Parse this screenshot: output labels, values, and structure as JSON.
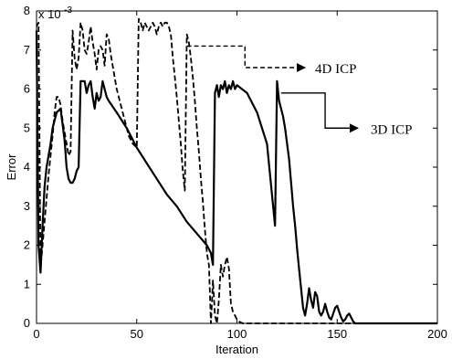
{
  "chart_data": {
    "type": "line",
    "title": "",
    "xlabel": "Iteration",
    "ylabel": "Error",
    "xlim": [
      0,
      200
    ],
    "ylim": [
      0,
      8
    ],
    "y_scale_exponent_label": "x 10",
    "y_scale_exponent_power": "-3",
    "xticks": [
      "0",
      "50",
      "100",
      "150",
      "200"
    ],
    "yticks": [
      "0",
      "1",
      "2",
      "3",
      "4",
      "5",
      "6",
      "7",
      "8"
    ],
    "grid": false,
    "series": [
      {
        "name": "3D ICP",
        "style": "solid",
        "x": [
          0,
          1,
          2,
          3,
          4,
          5,
          6,
          7,
          8,
          10,
          12,
          14,
          15,
          16,
          17,
          18,
          19,
          20,
          21,
          22,
          23,
          24,
          25,
          26,
          27,
          28,
          29,
          30,
          31,
          32,
          33,
          34,
          35,
          36,
          40,
          45,
          50,
          55,
          60,
          65,
          70,
          75,
          80,
          85,
          86,
          87,
          88,
          89,
          90,
          91,
          92,
          93,
          94,
          95,
          96,
          97,
          98,
          99,
          100,
          105,
          110,
          115,
          119,
          120,
          121,
          122,
          123,
          124,
          125,
          126,
          127,
          128,
          129,
          130,
          131,
          132,
          133,
          134,
          135,
          136,
          137,
          138,
          139,
          140,
          141,
          142,
          143,
          144,
          145,
          146,
          147,
          148,
          149,
          150,
          151,
          152,
          153,
          154,
          155,
          156,
          157,
          158,
          159,
          160,
          161,
          162,
          163,
          165,
          200
        ],
        "y": [
          7.5,
          2.0,
          1.3,
          2.5,
          3.5,
          4.0,
          4.3,
          4.6,
          5.0,
          5.4,
          5.5,
          4.7,
          4.0,
          3.7,
          3.6,
          3.6,
          3.7,
          3.9,
          4.0,
          6.2,
          6.2,
          6.2,
          5.9,
          6.1,
          6.2,
          5.8,
          5.5,
          5.9,
          5.7,
          5.8,
          6.2,
          6.0,
          5.8,
          5.7,
          5.4,
          5.0,
          4.5,
          4.1,
          3.7,
          3.3,
          3.0,
          2.6,
          2.3,
          2.0,
          1.9,
          1.8,
          1.5,
          5.9,
          6.1,
          5.8,
          6.1,
          6.0,
          6.2,
          5.9,
          6.1,
          6.0,
          6.2,
          6.0,
          6.1,
          5.9,
          5.4,
          4.6,
          2.5,
          6.2,
          5.7,
          5.5,
          5.3,
          5.0,
          4.6,
          4.2,
          3.6,
          3.0,
          2.5,
          1.9,
          1.4,
          0.9,
          0.4,
          0.2,
          0.5,
          0.9,
          0.6,
          0.4,
          0.8,
          0.7,
          0.3,
          0.2,
          0.3,
          0.5,
          0.3,
          0.15,
          0.1,
          0.25,
          0.4,
          0.45,
          0.3,
          0.15,
          0.05,
          0.1,
          0.2,
          0.25,
          0.15,
          0.05,
          0.0,
          0.0,
          0.0,
          0.0,
          0.0,
          0.0,
          0.0
        ]
      },
      {
        "name": "4D ICP",
        "style": "dashed",
        "x": [
          0,
          1,
          2,
          3,
          4,
          5,
          6,
          7,
          8,
          9,
          10,
          11,
          12,
          13,
          14,
          15,
          16,
          17,
          18,
          19,
          20,
          21,
          22,
          23,
          24,
          25,
          26,
          27,
          28,
          29,
          30,
          31,
          32,
          33,
          34,
          35,
          36,
          37,
          38,
          40,
          42,
          44,
          46,
          48,
          50,
          51,
          52,
          53,
          54,
          55,
          56,
          57,
          58,
          59,
          60,
          61,
          62,
          63,
          64,
          65,
          66,
          67,
          68,
          69,
          70,
          71,
          72,
          73,
          74,
          75,
          76,
          77,
          78,
          79,
          80,
          81,
          82,
          83,
          84,
          85,
          86,
          87,
          88,
          89,
          90,
          91,
          92,
          93,
          94,
          95,
          96,
          97,
          98,
          99,
          100,
          101,
          102,
          103,
          104,
          105,
          110,
          200
        ],
        "y": [
          7.6,
          7.7,
          1.4,
          2.0,
          2.6,
          3.2,
          3.8,
          4.3,
          4.8,
          5.4,
          5.8,
          5.8,
          5.6,
          5.2,
          4.9,
          4.6,
          4.3,
          4.4,
          7.5,
          6.8,
          6.5,
          6.8,
          7.7,
          7.5,
          7.0,
          6.9,
          7.2,
          7.6,
          7.2,
          6.9,
          6.5,
          7.0,
          7.1,
          7.0,
          6.6,
          7.4,
          7.3,
          6.9,
          6.6,
          6.0,
          5.6,
          5.2,
          4.8,
          4.6,
          4.5,
          7.8,
          7.7,
          7.5,
          7.7,
          7.6,
          7.5,
          7.6,
          7.7,
          7.6,
          7.4,
          7.6,
          7.7,
          7.6,
          7.7,
          7.7,
          7.6,
          7.4,
          6.8,
          6.3,
          5.8,
          5.2,
          4.6,
          3.9,
          3.4,
          7.4,
          7.2,
          6.8,
          6.3,
          5.7,
          5.0,
          4.4,
          3.7,
          3.1,
          2.4,
          1.8,
          1.5,
          0.0,
          1.1,
          0.2,
          0.0,
          0.6,
          1.5,
          1.2,
          1.5,
          1.7,
          1.4,
          0.5,
          0.3,
          0.2,
          0.1,
          0.05,
          0.02,
          0.0,
          0.0,
          0.0,
          0.0,
          0.0
        ]
      }
    ],
    "annotations": [
      {
        "text": "4D ICP",
        "series": "4D ICP"
      },
      {
        "text": "3D ICP",
        "series": "3D ICP"
      }
    ]
  }
}
